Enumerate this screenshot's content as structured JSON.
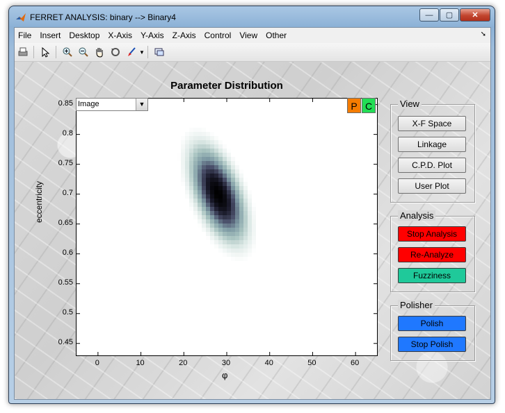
{
  "window": {
    "title": "FERRET ANALYSIS: binary --> Binary4",
    "minimize": "—",
    "maximize": "▢",
    "close": "✕"
  },
  "menu": [
    "File",
    "Insert",
    "Desktop",
    "X-Axis",
    "Y-Axis",
    "Z-Axis",
    "Control",
    "View",
    "Other"
  ],
  "menu_dock_icon": "dock-arrow-icon",
  "toolbar": {
    "icons": [
      "print-icon",
      "pointer-arrow-icon",
      "zoom-in-icon",
      "zoom-out-icon",
      "pan-hand-icon",
      "rotate-3d-icon",
      "data-cursor-brush-icon",
      "link-plot-icon"
    ]
  },
  "plot": {
    "title": "Parameter Distribution",
    "dropdown_value": "Image",
    "p_button": "P",
    "c_button": "C",
    "colors": {
      "p_button": "#f57c00",
      "c_button": "#22dd55"
    }
  },
  "chart_data": {
    "type": "heatmap",
    "title": "Parameter Distribution",
    "xlabel": "φ",
    "ylabel": "eccentricity",
    "xlim": [
      -5,
      65
    ],
    "ylim": [
      0.43,
      0.86
    ],
    "x_ticks": [
      "0",
      "10",
      "20",
      "30",
      "40",
      "50",
      "60"
    ],
    "y_ticks": [
      "0.85",
      "0.8",
      "0.75",
      "0.7",
      "0.65",
      "0.6",
      "0.55",
      "0.5",
      "0.45"
    ],
    "peak": {
      "x": 28,
      "y": 0.7
    },
    "spread": {
      "x_sd": 4.5,
      "y_sd": 0.055,
      "correlation": -0.55
    },
    "colormap": [
      "#ffffff",
      "#dde9e6",
      "#a8c3c0",
      "#7e9aa4",
      "#4a4f6a",
      "#1a1a2a",
      "#000000"
    ]
  },
  "view_panel": {
    "title": "View",
    "buttons": [
      "X-F Space",
      "Linkage",
      "C.P.D. Plot",
      "User Plot"
    ]
  },
  "analysis_panel": {
    "title": "Analysis",
    "buttons": [
      {
        "label": "Stop Analysis",
        "color": "#ff0000"
      },
      {
        "label": "Re-Analyze",
        "color": "#ff0000"
      },
      {
        "label": "Fuzziness",
        "color": "#1fc99a"
      }
    ]
  },
  "polisher_panel": {
    "title": "Polisher",
    "buttons": [
      {
        "label": "Polish",
        "color": "#1f78ff"
      },
      {
        "label": "Stop Polish",
        "color": "#1f78ff"
      }
    ]
  }
}
